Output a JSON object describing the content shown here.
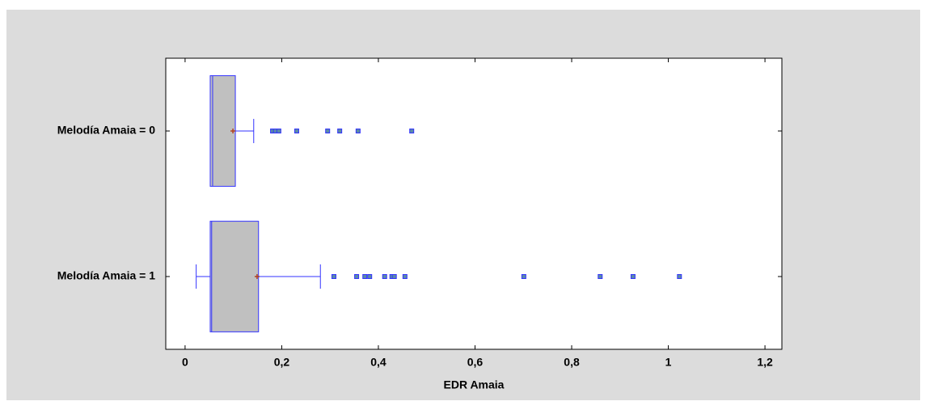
{
  "chart_data": {
    "type": "boxplot",
    "orientation": "horizontal",
    "x_label": "EDR Amaia",
    "categories": [
      "Melodía Amaia = 0",
      "Melodía Amaia = 1"
    ],
    "box_color": "#c0c0c0",
    "line_color": "#3333ff",
    "mean_color": "#b04020",
    "outlier_color": "#5a8aa8",
    "boxes": [
      {
        "min": 0.052,
        "q1": 0.052,
        "median": 0.057,
        "q3": 0.104,
        "max": 0.142,
        "mean": 0.099,
        "outliers": [
          0.181,
          0.187,
          0.194,
          0.231,
          0.295,
          0.32,
          0.358,
          0.469
        ]
      },
      {
        "min": 0.023,
        "q1": 0.052,
        "median": 0.055,
        "q3": 0.152,
        "max": 0.28,
        "mean": 0.149,
        "outliers": [
          0.308,
          0.355,
          0.372,
          0.382,
          0.413,
          0.428,
          0.433,
          0.455,
          0.701,
          0.859,
          0.927,
          1.023
        ]
      }
    ],
    "xlim": [
      -0.04,
      1.235
    ],
    "xticks": [
      0,
      {
        "value": 0.2,
        "label": "0,2"
      },
      {
        "value": 0.4,
        "label": "0,4"
      },
      {
        "value": 0.6,
        "label": "0,6"
      },
      {
        "value": 0.8,
        "label": "0,8"
      },
      1,
      {
        "value": 1.2,
        "label": "1,2"
      }
    ]
  }
}
